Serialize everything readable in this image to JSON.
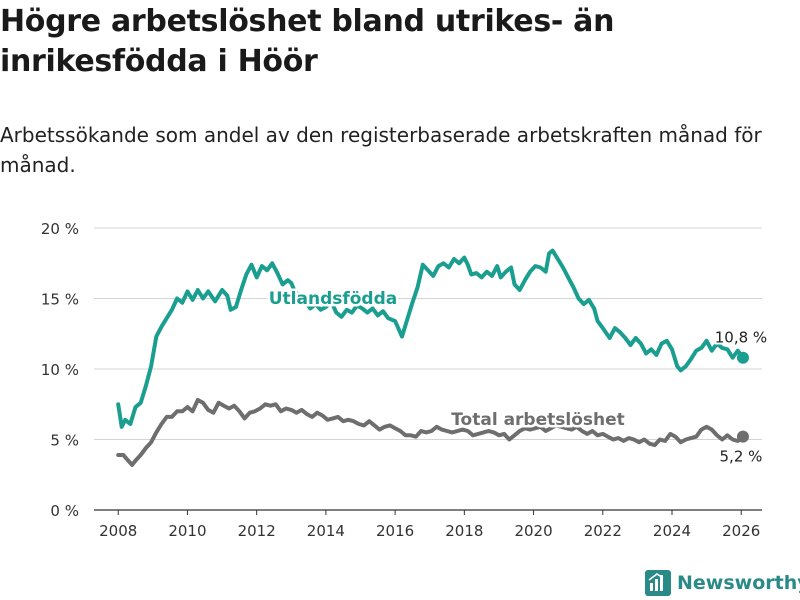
{
  "title": "Högre arbetslöshet bland utrikes- än inrikesfödda i Höör",
  "subtitle": "Arbetssökande som andel av den registerbaserade arbetskraften månad för månad.",
  "brand": {
    "name": "Newsworthy",
    "icon": "newsworthy-logo-icon",
    "color": "#2a8a88"
  },
  "colors": {
    "utlandsfodda": "#1a9e8f",
    "total": "#6e6e6e",
    "grid": "#d4d4d4"
  },
  "chart_data": {
    "type": "line",
    "xlim": [
      2007.3,
      2026.6
    ],
    "ylim": [
      0,
      20
    ],
    "x_ticks": [
      2008,
      2010,
      2012,
      2014,
      2016,
      2018,
      2020,
      2022,
      2024,
      2026
    ],
    "x_tick_labels": [
      "2008",
      "2010",
      "2012",
      "2014",
      "2016",
      "2018",
      "2020",
      "2022",
      "2024",
      "2026"
    ],
    "y_ticks": [
      0,
      5,
      10,
      15,
      20
    ],
    "y_tick_labels": [
      "0 %",
      "5 %",
      "10 %",
      "15 %",
      "20 %"
    ],
    "series": [
      {
        "name": "Utlandsfödda",
        "color": "#1a9e8f",
        "end_label": "10,8 %",
        "points": [
          [
            2008.0,
            7.5
          ],
          [
            2008.1,
            5.9
          ],
          [
            2008.2,
            6.4
          ],
          [
            2008.35,
            6.1
          ],
          [
            2008.5,
            7.3
          ],
          [
            2008.65,
            7.6
          ],
          [
            2008.8,
            8.8
          ],
          [
            2008.95,
            10.2
          ],
          [
            2009.1,
            12.3
          ],
          [
            2009.25,
            13.0
          ],
          [
            2009.4,
            13.6
          ],
          [
            2009.55,
            14.2
          ],
          [
            2009.7,
            15.0
          ],
          [
            2009.85,
            14.7
          ],
          [
            2010.0,
            15.5
          ],
          [
            2010.15,
            14.9
          ],
          [
            2010.3,
            15.6
          ],
          [
            2010.45,
            15.0
          ],
          [
            2010.6,
            15.5
          ],
          [
            2010.8,
            14.8
          ],
          [
            2011.0,
            15.6
          ],
          [
            2011.15,
            15.2
          ],
          [
            2011.25,
            14.2
          ],
          [
            2011.4,
            14.4
          ],
          [
            2011.55,
            15.6
          ],
          [
            2011.7,
            16.7
          ],
          [
            2011.85,
            17.4
          ],
          [
            2012.0,
            16.5
          ],
          [
            2012.15,
            17.3
          ],
          [
            2012.3,
            17.0
          ],
          [
            2012.45,
            17.5
          ],
          [
            2012.6,
            16.8
          ],
          [
            2012.75,
            16.0
          ],
          [
            2012.9,
            16.3
          ],
          [
            2013.0,
            16.1
          ],
          [
            2013.1,
            15.5
          ],
          [
            2013.25,
            15.2
          ],
          [
            2013.4,
            14.8
          ],
          [
            2013.55,
            14.3
          ],
          [
            2013.7,
            14.6
          ],
          [
            2013.85,
            14.2
          ],
          [
            2014.0,
            14.4
          ],
          [
            2014.15,
            14.8
          ],
          [
            2014.3,
            14.0
          ],
          [
            2014.45,
            13.7
          ],
          [
            2014.6,
            14.2
          ],
          [
            2014.75,
            14.0
          ],
          [
            2014.9,
            14.5
          ],
          [
            2015.05,
            14.3
          ],
          [
            2015.2,
            14.0
          ],
          [
            2015.35,
            14.3
          ],
          [
            2015.5,
            13.8
          ],
          [
            2015.65,
            14.1
          ],
          [
            2015.8,
            13.6
          ],
          [
            2016.0,
            13.4
          ],
          [
            2016.2,
            12.3
          ],
          [
            2016.35,
            13.5
          ],
          [
            2016.5,
            14.7
          ],
          [
            2016.65,
            15.8
          ],
          [
            2016.8,
            17.4
          ],
          [
            2016.95,
            17.0
          ],
          [
            2017.1,
            16.6
          ],
          [
            2017.25,
            17.3
          ],
          [
            2017.4,
            17.5
          ],
          [
            2017.55,
            17.2
          ],
          [
            2017.7,
            17.8
          ],
          [
            2017.85,
            17.5
          ],
          [
            2018.0,
            17.9
          ],
          [
            2018.1,
            17.4
          ],
          [
            2018.2,
            16.7
          ],
          [
            2018.35,
            16.8
          ],
          [
            2018.5,
            16.5
          ],
          [
            2018.65,
            16.9
          ],
          [
            2018.8,
            16.6
          ],
          [
            2018.95,
            17.3
          ],
          [
            2019.05,
            16.5
          ],
          [
            2019.2,
            16.9
          ],
          [
            2019.35,
            17.2
          ],
          [
            2019.45,
            16.0
          ],
          [
            2019.6,
            15.6
          ],
          [
            2019.75,
            16.3
          ],
          [
            2019.9,
            16.9
          ],
          [
            2020.05,
            17.3
          ],
          [
            2020.2,
            17.2
          ],
          [
            2020.35,
            16.9
          ],
          [
            2020.45,
            18.2
          ],
          [
            2020.55,
            18.4
          ],
          [
            2020.7,
            17.8
          ],
          [
            2020.85,
            17.2
          ],
          [
            2021.0,
            16.5
          ],
          [
            2021.15,
            15.8
          ],
          [
            2021.3,
            15.0
          ],
          [
            2021.45,
            14.6
          ],
          [
            2021.6,
            14.9
          ],
          [
            2021.75,
            14.3
          ],
          [
            2021.85,
            13.4
          ],
          [
            2022.0,
            12.9
          ],
          [
            2022.2,
            12.2
          ],
          [
            2022.35,
            12.9
          ],
          [
            2022.5,
            12.6
          ],
          [
            2022.65,
            12.2
          ],
          [
            2022.8,
            11.7
          ],
          [
            2022.95,
            12.2
          ],
          [
            2023.1,
            11.8
          ],
          [
            2023.25,
            11.1
          ],
          [
            2023.4,
            11.4
          ],
          [
            2023.55,
            11.0
          ],
          [
            2023.7,
            11.8
          ],
          [
            2023.85,
            12.0
          ],
          [
            2024.0,
            11.4
          ],
          [
            2024.15,
            10.2
          ],
          [
            2024.25,
            9.9
          ],
          [
            2024.4,
            10.2
          ],
          [
            2024.55,
            10.7
          ],
          [
            2024.7,
            11.3
          ],
          [
            2024.85,
            11.5
          ],
          [
            2025.0,
            12.0
          ],
          [
            2025.15,
            11.3
          ],
          [
            2025.3,
            11.8
          ],
          [
            2025.45,
            11.5
          ],
          [
            2025.6,
            11.4
          ],
          [
            2025.75,
            10.8
          ],
          [
            2025.9,
            11.3
          ],
          [
            2026.05,
            10.8
          ]
        ]
      },
      {
        "name": "Total arbetslöshet",
        "color": "#6e6e6e",
        "end_label": "5,2 %",
        "points": [
          [
            2008.0,
            3.9
          ],
          [
            2008.15,
            3.9
          ],
          [
            2008.25,
            3.6
          ],
          [
            2008.4,
            3.2
          ],
          [
            2008.5,
            3.5
          ],
          [
            2008.65,
            3.9
          ],
          [
            2008.8,
            4.4
          ],
          [
            2008.95,
            4.8
          ],
          [
            2009.1,
            5.5
          ],
          [
            2009.25,
            6.1
          ],
          [
            2009.4,
            6.6
          ],
          [
            2009.55,
            6.6
          ],
          [
            2009.7,
            7.0
          ],
          [
            2009.85,
            7.0
          ],
          [
            2010.0,
            7.3
          ],
          [
            2010.15,
            7.0
          ],
          [
            2010.3,
            7.8
          ],
          [
            2010.45,
            7.6
          ],
          [
            2010.6,
            7.1
          ],
          [
            2010.75,
            6.9
          ],
          [
            2010.9,
            7.6
          ],
          [
            2011.05,
            7.4
          ],
          [
            2011.2,
            7.2
          ],
          [
            2011.35,
            7.4
          ],
          [
            2011.5,
            7.0
          ],
          [
            2011.65,
            6.5
          ],
          [
            2011.8,
            6.9
          ],
          [
            2011.95,
            7.0
          ],
          [
            2012.1,
            7.2
          ],
          [
            2012.25,
            7.5
          ],
          [
            2012.4,
            7.4
          ],
          [
            2012.55,
            7.5
          ],
          [
            2012.7,
            7.0
          ],
          [
            2012.85,
            7.2
          ],
          [
            2013.0,
            7.1
          ],
          [
            2013.15,
            6.9
          ],
          [
            2013.3,
            7.1
          ],
          [
            2013.45,
            6.8
          ],
          [
            2013.6,
            6.6
          ],
          [
            2013.75,
            6.9
          ],
          [
            2013.9,
            6.7
          ],
          [
            2014.05,
            6.4
          ],
          [
            2014.2,
            6.5
          ],
          [
            2014.35,
            6.6
          ],
          [
            2014.5,
            6.3
          ],
          [
            2014.65,
            6.4
          ],
          [
            2014.8,
            6.3
          ],
          [
            2014.95,
            6.1
          ],
          [
            2015.1,
            6.0
          ],
          [
            2015.25,
            6.3
          ],
          [
            2015.4,
            6.0
          ],
          [
            2015.55,
            5.7
          ],
          [
            2015.7,
            5.9
          ],
          [
            2015.85,
            6.0
          ],
          [
            2016.0,
            5.8
          ],
          [
            2016.15,
            5.6
          ],
          [
            2016.3,
            5.3
          ],
          [
            2016.45,
            5.3
          ],
          [
            2016.6,
            5.2
          ],
          [
            2016.75,
            5.6
          ],
          [
            2016.9,
            5.5
          ],
          [
            2017.05,
            5.6
          ],
          [
            2017.2,
            5.9
          ],
          [
            2017.35,
            5.7
          ],
          [
            2017.5,
            5.6
          ],
          [
            2017.65,
            5.5
          ],
          [
            2017.8,
            5.6
          ],
          [
            2017.95,
            5.7
          ],
          [
            2018.1,
            5.6
          ],
          [
            2018.25,
            5.3
          ],
          [
            2018.4,
            5.4
          ],
          [
            2018.55,
            5.5
          ],
          [
            2018.7,
            5.6
          ],
          [
            2018.85,
            5.5
          ],
          [
            2019.0,
            5.3
          ],
          [
            2019.15,
            5.4
          ],
          [
            2019.3,
            5.0
          ],
          [
            2019.45,
            5.3
          ],
          [
            2019.6,
            5.6
          ],
          [
            2019.75,
            5.8
          ],
          [
            2019.9,
            5.7
          ],
          [
            2020.05,
            5.8
          ],
          [
            2020.2,
            5.9
          ],
          [
            2020.35,
            5.6
          ],
          [
            2020.5,
            5.8
          ],
          [
            2020.65,
            6.0
          ],
          [
            2020.8,
            5.9
          ],
          [
            2020.95,
            5.8
          ],
          [
            2021.1,
            5.7
          ],
          [
            2021.25,
            5.9
          ],
          [
            2021.4,
            5.6
          ],
          [
            2021.55,
            5.4
          ],
          [
            2021.7,
            5.6
          ],
          [
            2021.85,
            5.3
          ],
          [
            2022.0,
            5.4
          ],
          [
            2022.15,
            5.2
          ],
          [
            2022.3,
            5.0
          ],
          [
            2022.45,
            5.1
          ],
          [
            2022.6,
            4.9
          ],
          [
            2022.75,
            5.1
          ],
          [
            2022.9,
            5.0
          ],
          [
            2023.05,
            4.8
          ],
          [
            2023.2,
            5.0
          ],
          [
            2023.35,
            4.7
          ],
          [
            2023.5,
            4.6
          ],
          [
            2023.65,
            5.0
          ],
          [
            2023.8,
            4.9
          ],
          [
            2023.95,
            5.4
          ],
          [
            2024.1,
            5.2
          ],
          [
            2024.25,
            4.8
          ],
          [
            2024.4,
            5.0
          ],
          [
            2024.55,
            5.1
          ],
          [
            2024.7,
            5.2
          ],
          [
            2024.85,
            5.7
          ],
          [
            2025.0,
            5.9
          ],
          [
            2025.15,
            5.7
          ],
          [
            2025.3,
            5.3
          ],
          [
            2025.45,
            5.0
          ],
          [
            2025.6,
            5.3
          ],
          [
            2025.75,
            5.0
          ],
          [
            2025.9,
            4.9
          ],
          [
            2026.05,
            5.2
          ]
        ]
      }
    ]
  }
}
